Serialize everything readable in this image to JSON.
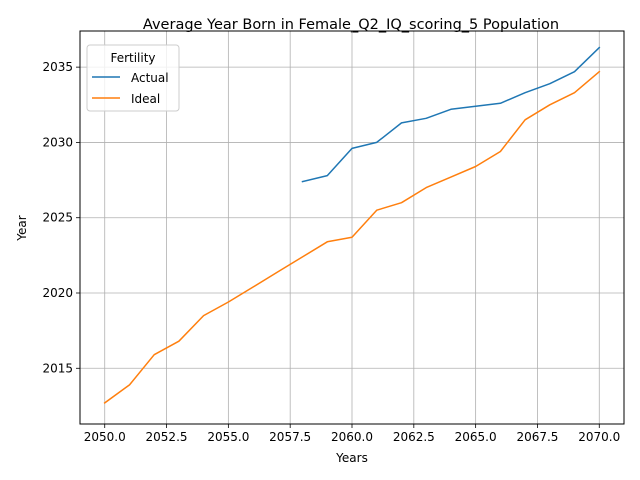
{
  "chart_data": {
    "type": "line",
    "title": "Average Year Born in Female_Q2_IQ_scoring_5 Population",
    "xlabel": "Years",
    "ylabel": "Year",
    "xlim": [
      2049.0,
      2071.0
    ],
    "ylim": [
      2011.3,
      2037.4
    ],
    "x_ticks": [
      2050.0,
      2052.5,
      2055.0,
      2057.5,
      2060.0,
      2062.5,
      2065.0,
      2067.5,
      2070.0
    ],
    "x_tick_labels": [
      "2050.0",
      "2052.5",
      "2055.0",
      "2057.5",
      "2060.0",
      "2062.5",
      "2065.0",
      "2067.5",
      "2070.0"
    ],
    "y_ticks": [
      2015,
      2020,
      2025,
      2030,
      2035
    ],
    "y_tick_labels": [
      "2015",
      "2020",
      "2025",
      "2030",
      "2035"
    ],
    "grid": true,
    "legend": {
      "title": "Fertility",
      "placement": "upper-left"
    },
    "series": [
      {
        "name": "Actual",
        "color": "#1f77b4",
        "x": [
          2058,
          2059,
          2060,
          2061,
          2062,
          2063,
          2064,
          2065,
          2066,
          2067,
          2068,
          2069,
          2070
        ],
        "values": [
          2027.4,
          2027.8,
          2029.6,
          2030.0,
          2031.3,
          2031.6,
          2032.2,
          2032.4,
          2032.6,
          2033.3,
          2033.9,
          2034.7,
          2036.3
        ]
      },
      {
        "name": "Ideal",
        "color": "#ff7f0e",
        "x": [
          2050,
          2051,
          2052,
          2053,
          2054,
          2055,
          2056,
          2057,
          2058,
          2059,
          2060,
          2061,
          2062,
          2063,
          2064,
          2065,
          2066,
          2067,
          2068,
          2069,
          2070
        ],
        "values": [
          2012.7,
          2013.9,
          2015.9,
          2016.8,
          2018.5,
          2019.4,
          2020.4,
          2021.4,
          2022.4,
          2023.4,
          2023.7,
          2025.5,
          2026.0,
          2027.0,
          2027.7,
          2028.4,
          2029.4,
          2031.5,
          2032.5,
          2033.3,
          2034.7
        ]
      }
    ]
  }
}
